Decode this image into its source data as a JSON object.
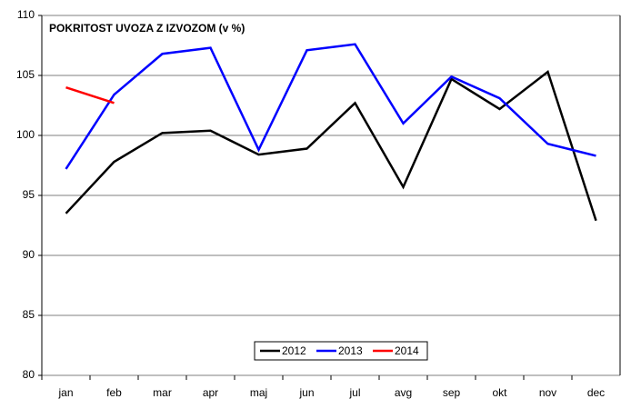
{
  "chart_data": {
    "type": "line",
    "title": "POKRITOST UVOZA Z IZVOZOM (v %)",
    "categories": [
      "jan",
      "feb",
      "mar",
      "apr",
      "maj",
      "jun",
      "jul",
      "avg",
      "sep",
      "okt",
      "nov",
      "dec"
    ],
    "series": [
      {
        "name": "2012",
        "color": "#000000",
        "values": [
          93.5,
          97.8,
          100.2,
          100.4,
          98.4,
          98.9,
          102.7,
          95.7,
          104.7,
          102.2,
          105.3,
          92.9
        ]
      },
      {
        "name": "2013",
        "color": "#0000ff",
        "values": [
          97.2,
          103.4,
          106.8,
          107.3,
          98.8,
          107.1,
          107.6,
          101.0,
          104.9,
          103.1,
          99.3,
          98.3
        ]
      },
      {
        "name": "2014",
        "color": "#ff0000",
        "values": [
          104.0,
          102.7,
          null,
          null,
          null,
          null,
          null,
          null,
          null,
          null,
          null,
          null
        ]
      }
    ],
    "ylim": [
      80,
      110
    ],
    "yticks": [
      80,
      85,
      90,
      95,
      100,
      105,
      110
    ],
    "grid": true,
    "legend": "bottom"
  }
}
